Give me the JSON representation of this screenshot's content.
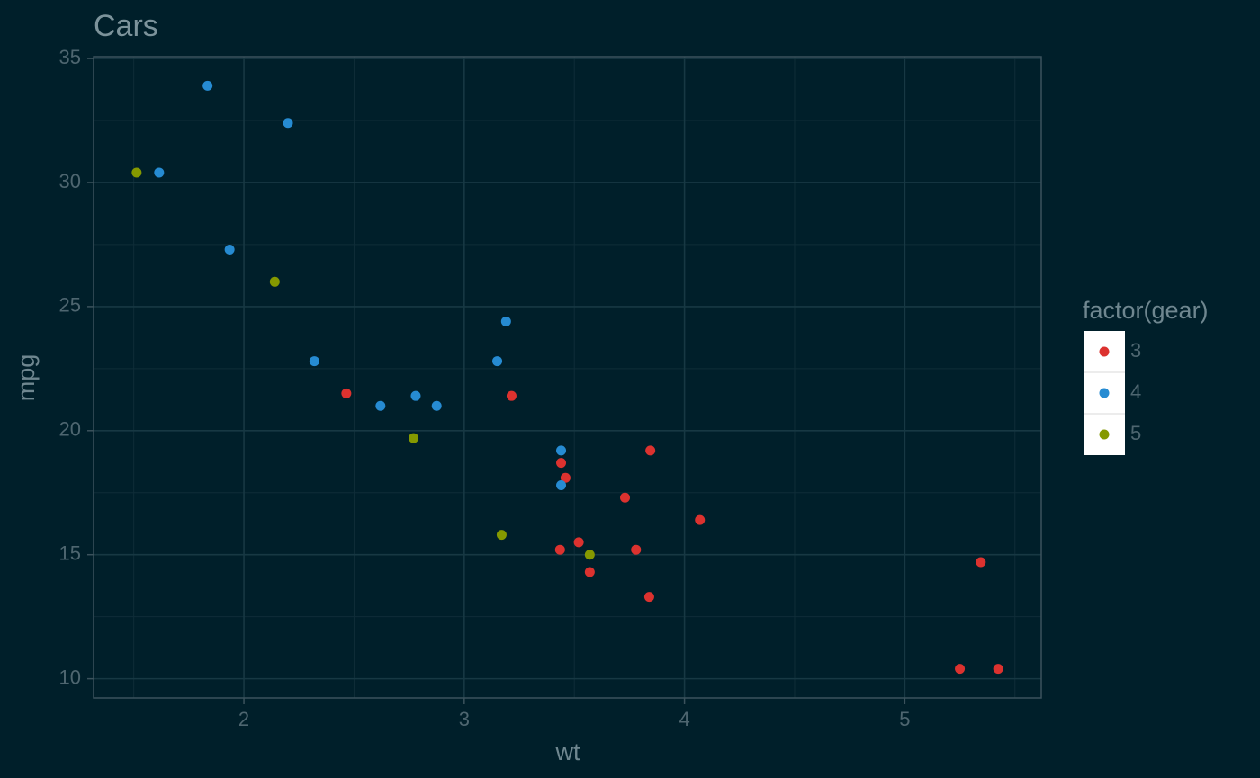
{
  "chart_data": {
    "type": "scatter",
    "title": "Cars",
    "x_label": "wt",
    "y_label": "mpg",
    "legend_title": "factor(gear)",
    "legend_position": "right",
    "grid": true,
    "xlim": [
      1.3175,
      5.6195
    ],
    "ylim": [
      9.225,
      35.075
    ],
    "xticks": [
      2,
      3,
      4,
      5
    ],
    "yticks": [
      10,
      15,
      20,
      25,
      30,
      35
    ],
    "series": [
      {
        "name": "3",
        "color": "#dc322f",
        "x": [
          3.215,
          3.44,
          3.46,
          3.57,
          4.07,
          3.73,
          3.78,
          5.25,
          5.424,
          5.345,
          2.465,
          3.52,
          3.435,
          3.84,
          3.845
        ],
        "values": [
          21.4,
          18.7,
          18.1,
          14.3,
          16.4,
          17.3,
          15.2,
          10.4,
          10.4,
          14.7,
          21.5,
          15.5,
          15.2,
          13.3,
          19.2
        ]
      },
      {
        "name": "4",
        "color": "#268bd2",
        "x": [
          2.62,
          2.875,
          2.32,
          3.19,
          3.15,
          3.44,
          3.44,
          2.2,
          1.615,
          1.835,
          1.935,
          2.78
        ],
        "values": [
          21.0,
          21.0,
          22.8,
          24.4,
          22.8,
          19.2,
          17.8,
          32.4,
          30.4,
          33.9,
          27.3,
          21.4
        ]
      },
      {
        "name": "5",
        "color": "#859900",
        "x": [
          2.14,
          1.513,
          3.17,
          2.77,
          3.57
        ],
        "values": [
          26.0,
          30.4,
          15.8,
          19.7,
          15.0
        ]
      }
    ]
  }
}
